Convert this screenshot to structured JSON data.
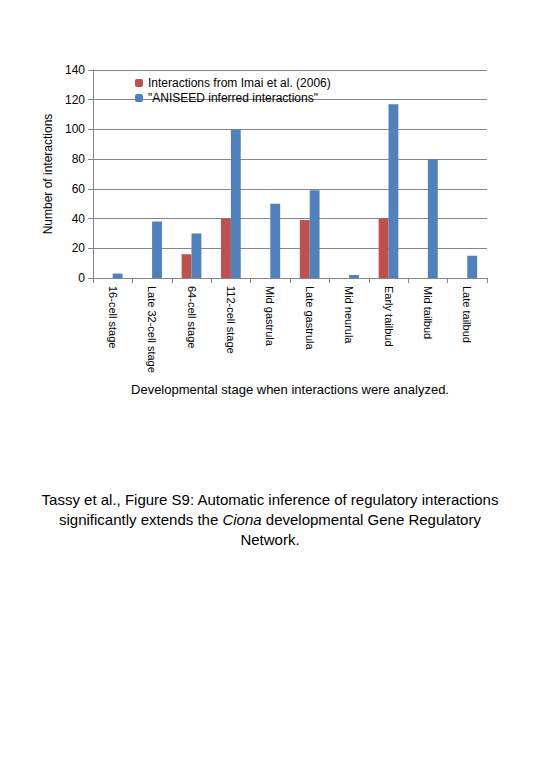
{
  "chart_data": {
    "type": "bar",
    "categories": [
      "16-cell stage",
      "Late 32-cell stage",
      "64-cell stage",
      "112-cell stage",
      "Mid gastrula",
      "Late gastrula",
      "Mid neurula",
      "Early tailbud",
      "Mid tailbud",
      "Late tailbud"
    ],
    "series": [
      {
        "name": "Interactions from Imai et al. (2006)",
        "color": "#c0504d",
        "values": [
          0,
          0,
          16,
          40,
          0,
          39,
          0,
          40,
          0,
          0
        ]
      },
      {
        "name": "\"ANISEED inferred interactions\"",
        "color": "#4f81bd",
        "values": [
          3,
          38,
          30,
          100,
          50,
          59,
          2,
          117,
          80,
          15
        ]
      }
    ],
    "x_label": "Developmental stage when interactions were analyzed.",
    "y_label": "Number of interactions",
    "ylim": [
      0,
      140
    ],
    "yticks": [
      0,
      20,
      40,
      60,
      80,
      100,
      120,
      140
    ],
    "grid": true,
    "legend": "top-left",
    "caption": [
      {
        "text": "Tassy et al., Figure S9: Automatic inference of regulatory interactions significantly extends the ",
        "italic": false
      },
      {
        "text": "Ciona",
        "italic": true
      },
      {
        "text": " developmental Gene Regulatory Network.",
        "italic": false
      }
    ]
  }
}
